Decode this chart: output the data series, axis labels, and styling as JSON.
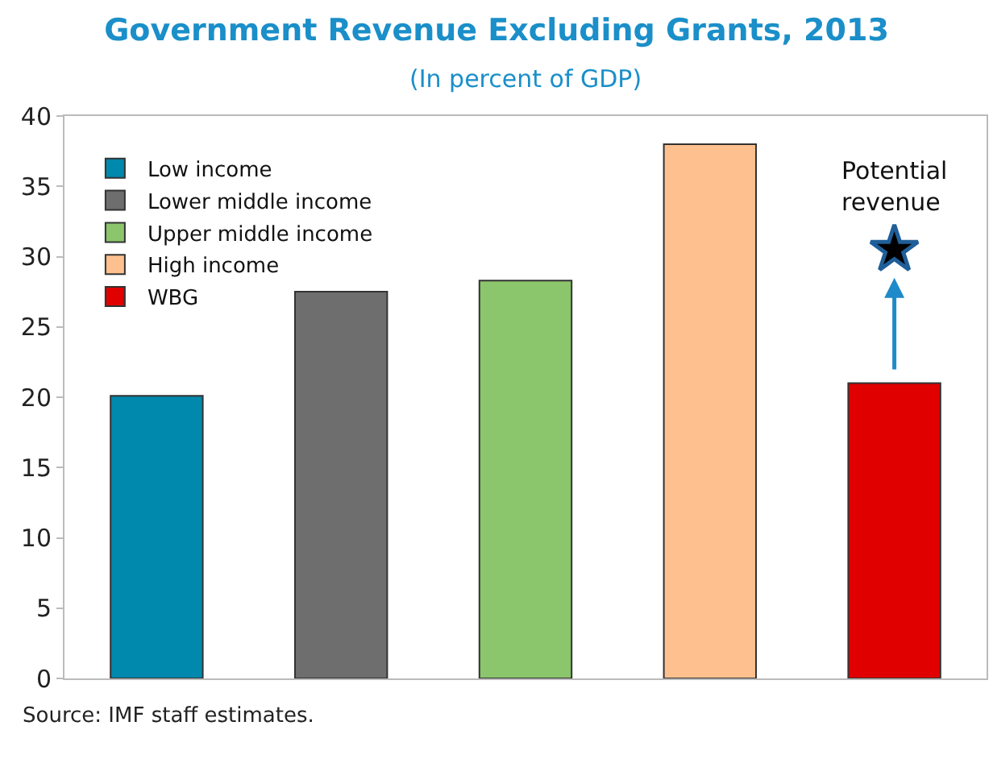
{
  "chart_data": {
    "type": "bar",
    "title": "Government Revenue Excluding Grants, 2013",
    "subtitle": "(In percent of GDP)",
    "categories": [
      null,
      null,
      null,
      null,
      null
    ],
    "series": [
      {
        "name": "Low income",
        "color": "#0088ad",
        "values": [
          20.1,
          null,
          null,
          null,
          null
        ]
      },
      {
        "name": "Lower middle income",
        "color": "#6e6e6e",
        "values": [
          null,
          27.5,
          null,
          null,
          null
        ]
      },
      {
        "name": "Upper middle income",
        "color": "#8cc66c",
        "values": [
          null,
          null,
          28.3,
          null,
          null
        ]
      },
      {
        "name": "High income",
        "color": "#fec08e",
        "values": [
          null,
          null,
          null,
          38.0,
          null
        ]
      },
      {
        "name": "WBG",
        "color": "#e00000",
        "values": [
          null,
          null,
          null,
          null,
          21.0
        ]
      },
      {
        "type": "scatter",
        "color": "#000000",
        "values": [
          null,
          null,
          null,
          null,
          30.5
        ]
      }
    ],
    "marker": "star",
    "ylim": [
      0,
      40
    ],
    "yticks": [
      0,
      5,
      10,
      15,
      20,
      25,
      30,
      35,
      40
    ],
    "grid": false,
    "legend": "top left",
    "annotations": [
      "Potential revenue",
      "Source: IMF staff estimates."
    ]
  }
}
